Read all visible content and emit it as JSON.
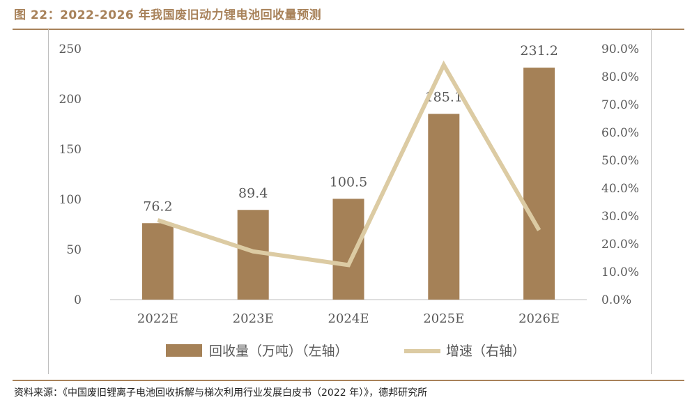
{
  "header": {
    "title": "图 22：2022-2026 年我国废旧动力锂电池回收量预测"
  },
  "footer": {
    "source": "资料来源：《中国废旧锂离子电池回收拆解与梯次利用行业发展白皮书（2022 年）》，德邦研究所"
  },
  "colors": {
    "accent": "#a8825a",
    "bar": "#a58157",
    "line": "#dccba3",
    "text": "#595959"
  },
  "chart_data": {
    "type": "bar",
    "categories": [
      "2022E",
      "2023E",
      "2024E",
      "2025E",
      "2026E"
    ],
    "y_left": {
      "ylim": [
        0,
        250
      ],
      "ticks": [
        0,
        50,
        100,
        150,
        200,
        250
      ],
      "tick_labels": [
        "0",
        "50",
        "100",
        "150",
        "200",
        "250"
      ]
    },
    "y_right": {
      "ylim": [
        0,
        0.9
      ],
      "ticks": [
        0,
        0.1,
        0.2,
        0.3,
        0.4,
        0.5,
        0.6,
        0.7,
        0.8,
        0.9
      ],
      "tick_labels": [
        "0.0%",
        "10.0%",
        "20.0%",
        "30.0%",
        "40.0%",
        "50.0%",
        "60.0%",
        "70.0%",
        "80.0%",
        "90.0%"
      ]
    },
    "series": [
      {
        "name": "回收量（万吨）（左轴）",
        "type": "bar",
        "axis": "left",
        "values": [
          76.2,
          89.4,
          100.5,
          185.1,
          231.2
        ],
        "data_labels": [
          "76.2",
          "89.4",
          "100.5",
          "185.1",
          "231.2"
        ]
      },
      {
        "name": "增速（右轴）",
        "type": "line",
        "axis": "right",
        "values": [
          0.285,
          0.173,
          0.124,
          0.842,
          0.249
        ]
      }
    ],
    "grid": false,
    "legend": "bottom"
  }
}
